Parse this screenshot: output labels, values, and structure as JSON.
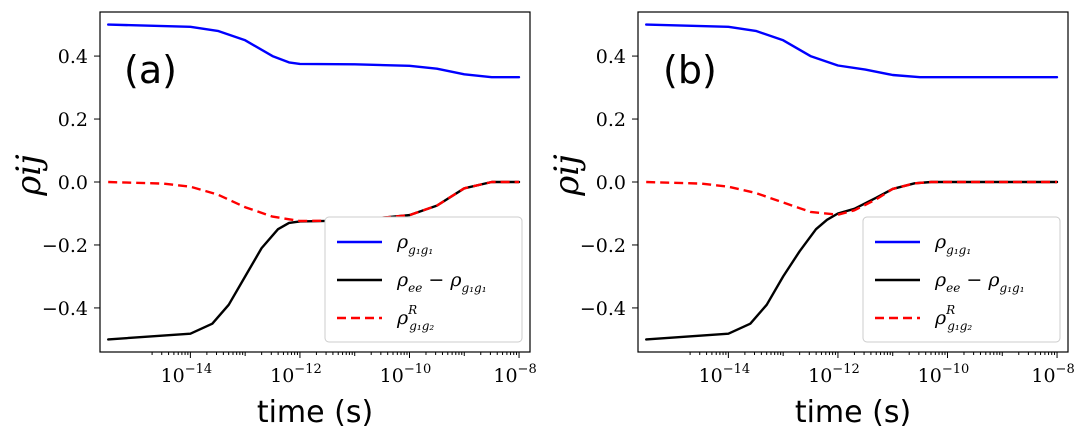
{
  "chart_data": [
    {
      "type": "line",
      "panel_label": "(a)",
      "xlabel": "time (s)",
      "ylabel": "ρij",
      "xscale": "log",
      "xlim_log10": [
        -15.65,
        -7.8
      ],
      "ylim": [
        -0.54,
        0.54
      ],
      "yticks": [
        {
          "value": 0.4,
          "label": "0.4"
        },
        {
          "value": 0.2,
          "label": "0.2"
        },
        {
          "value": 0.0,
          "label": "0.0"
        },
        {
          "value": -0.2,
          "label": "−0.2"
        },
        {
          "value": -0.4,
          "label": "−0.4"
        }
      ],
      "xticks": [
        {
          "exp": -14,
          "base": "10",
          "sup": "−14"
        },
        {
          "exp": -12,
          "base": "10",
          "sup": "−12"
        },
        {
          "exp": -10,
          "base": "10",
          "sup": "−10"
        },
        {
          "exp": -8,
          "base": "10",
          "sup": "−8"
        }
      ],
      "legend_position": "lower-right",
      "series": [
        {
          "name": "ρg1g1",
          "color": "#0000ff",
          "style": "solid",
          "log10_x": [
            -15.5,
            -14.0,
            -13.5,
            -13.0,
            -12.5,
            -12.2,
            -12.0,
            -11.0,
            -10.0,
            -9.5,
            -9.0,
            -8.5,
            -8.0
          ],
          "y": [
            0.5,
            0.493,
            0.48,
            0.45,
            0.4,
            0.38,
            0.375,
            0.374,
            0.369,
            0.36,
            0.342,
            0.333,
            0.333
          ]
        },
        {
          "name": "ρee − ρg1g1",
          "color": "#000000",
          "style": "solid",
          "log10_x": [
            -15.5,
            -14.0,
            -13.6,
            -13.3,
            -13.0,
            -12.7,
            -12.4,
            -12.2,
            -12.0,
            -11.0,
            -10.0,
            -9.5,
            -9.0,
            -8.5,
            -8.0
          ],
          "y": [
            -0.5,
            -0.482,
            -0.45,
            -0.39,
            -0.3,
            -0.21,
            -0.15,
            -0.13,
            -0.125,
            -0.122,
            -0.105,
            -0.075,
            -0.02,
            0.0,
            0.0
          ]
        },
        {
          "name": "ρRg1g2",
          "color": "#ff0000",
          "style": "dashed",
          "log10_x": [
            -15.5,
            -14.5,
            -14.0,
            -13.5,
            -13.0,
            -12.5,
            -12.0,
            -11.0,
            -10.0,
            -9.5,
            -9.0,
            -8.5,
            -8.0
          ],
          "y": [
            0.0,
            -0.005,
            -0.015,
            -0.04,
            -0.08,
            -0.11,
            -0.124,
            -0.122,
            -0.105,
            -0.075,
            -0.02,
            0.0,
            0.0
          ]
        }
      ]
    },
    {
      "type": "line",
      "panel_label": "(b)",
      "xlabel": "time (s)",
      "ylabel": "ρij",
      "xscale": "log",
      "xlim_log10": [
        -15.65,
        -7.8
      ],
      "ylim": [
        -0.54,
        0.54
      ],
      "yticks": [
        {
          "value": 0.4,
          "label": "0.4"
        },
        {
          "value": 0.2,
          "label": "0.2"
        },
        {
          "value": 0.0,
          "label": "0.0"
        },
        {
          "value": -0.2,
          "label": "−0.2"
        },
        {
          "value": -0.4,
          "label": "−0.4"
        }
      ],
      "xticks": [
        {
          "exp": -14,
          "base": "10",
          "sup": "−14"
        },
        {
          "exp": -12,
          "base": "10",
          "sup": "−12"
        },
        {
          "exp": -10,
          "base": "10",
          "sup": "−10"
        },
        {
          "exp": -8,
          "base": "10",
          "sup": "−8"
        }
      ],
      "legend_position": "lower-right",
      "series": [
        {
          "name": "ρg1g1",
          "color": "#0000ff",
          "style": "solid",
          "log10_x": [
            -15.5,
            -14.0,
            -13.5,
            -13.0,
            -12.5,
            -12.0,
            -11.5,
            -11.0,
            -10.5,
            -10.0,
            -9.0,
            -8.0
          ],
          "y": [
            0.5,
            0.493,
            0.48,
            0.45,
            0.4,
            0.37,
            0.357,
            0.34,
            0.333,
            0.333,
            0.333,
            0.333
          ]
        },
        {
          "name": "ρee − ρg1g1",
          "color": "#000000",
          "style": "solid",
          "log10_x": [
            -15.5,
            -14.0,
            -13.6,
            -13.3,
            -13.0,
            -12.7,
            -12.4,
            -12.2,
            -12.0,
            -11.7,
            -11.3,
            -11.0,
            -10.6,
            -10.3,
            -10.0,
            -9.0,
            -8.0
          ],
          "y": [
            -0.5,
            -0.482,
            -0.45,
            -0.39,
            -0.3,
            -0.22,
            -0.15,
            -0.12,
            -0.1,
            -0.085,
            -0.05,
            -0.022,
            -0.004,
            0.0,
            0.0,
            0.0,
            0.0
          ]
        },
        {
          "name": "ρRg1g2",
          "color": "#ff0000",
          "style": "dashed",
          "log10_x": [
            -15.5,
            -14.5,
            -14.0,
            -13.5,
            -13.0,
            -12.5,
            -12.0,
            -11.7,
            -11.3,
            -11.0,
            -10.6,
            -10.3,
            -10.0,
            -9.0,
            -8.0
          ],
          "y": [
            0.0,
            -0.005,
            -0.015,
            -0.035,
            -0.065,
            -0.095,
            -0.104,
            -0.09,
            -0.055,
            -0.022,
            -0.004,
            0.0,
            0.0,
            0.0,
            0.0
          ]
        }
      ]
    }
  ]
}
